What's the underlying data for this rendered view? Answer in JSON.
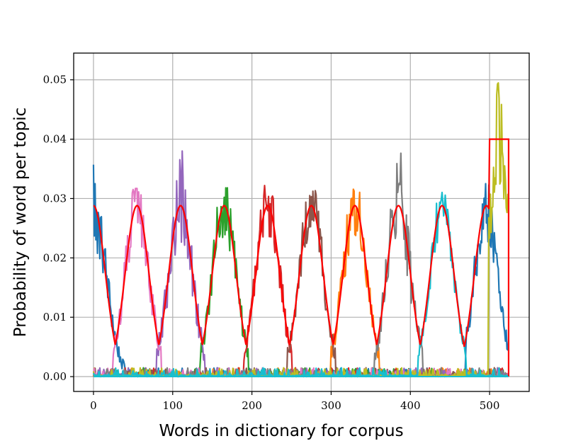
{
  "chart_data": {
    "type": "line",
    "title": "",
    "xlabel": "Words in dictionary for corpus",
    "ylabel": "Probability of word per topic",
    "xlim": [
      -25,
      550
    ],
    "ylim": [
      -0.0025,
      0.0545
    ],
    "xticks": [
      0,
      100,
      200,
      300,
      400,
      500
    ],
    "xtick_labels": [
      "0",
      "100",
      "200",
      "300",
      "400",
      "500"
    ],
    "yticks": [
      0.0,
      0.01,
      0.02,
      0.03,
      0.04,
      0.05
    ],
    "ytick_labels": [
      "0.00",
      "0.01",
      "0.02",
      "0.03",
      "0.04",
      "0.05"
    ],
    "grid": true,
    "x_range": [
      0,
      524
    ],
    "noise_floor": 0.0015,
    "reference_envelope": {
      "color": "#ff0000",
      "peak_height": 0.0288,
      "width": 15,
      "centers": [
        0,
        55,
        110,
        165,
        220,
        275,
        330,
        385,
        440,
        496
      ],
      "plateau": {
        "x": [
          500,
          524
        ],
        "y": 0.04
      }
    },
    "series": [
      {
        "color": "#1f77b4",
        "center": 3,
        "peak": 0.0255,
        "noise": 0.0045,
        "max": 0.0371,
        "x_range": [
          0,
          60
        ],
        "secondary": {
          "center": 496,
          "x_range": [
            470,
            524
          ],
          "peak": 0.028
        }
      },
      {
        "color": "#ff7f0e",
        "center": 330,
        "peak": 0.0288,
        "noise": 0.0045,
        "max": 0.0328,
        "x_range": [
          300,
          360
        ]
      },
      {
        "color": "#2ca02c",
        "center": 165,
        "peak": 0.0288,
        "noise": 0.0045,
        "max": 0.0318,
        "x_range": [
          135,
          195
        ]
      },
      {
        "color": "#d62728",
        "center": 220,
        "peak": 0.0288,
        "noise": 0.0045,
        "max": 0.0332,
        "x_range": [
          190,
          250
        ]
      },
      {
        "color": "#9467bd",
        "center": 110,
        "peak": 0.0288,
        "noise": 0.0055,
        "max": 0.0383,
        "x_range": [
          80,
          140
        ]
      },
      {
        "color": "#8c564b",
        "center": 275,
        "peak": 0.0288,
        "noise": 0.0045,
        "max": 0.0349,
        "x_range": [
          245,
          305
        ]
      },
      {
        "color": "#e377c2",
        "center": 55,
        "peak": 0.0288,
        "noise": 0.0045,
        "max": 0.0317,
        "x_range": [
          25,
          85
        ]
      },
      {
        "color": "#7f7f7f",
        "center": 385,
        "peak": 0.0288,
        "noise": 0.0055,
        "max": 0.038,
        "x_range": [
          355,
          415
        ]
      },
      {
        "color": "#bcbd22",
        "center": 512,
        "peak": 0.035,
        "noise": 0.0045,
        "max": 0.0521,
        "x_range": [
          499,
          524
        ]
      },
      {
        "color": "#17becf",
        "center": 440,
        "peak": 0.0285,
        "noise": 0.0035,
        "max": 0.0326,
        "x_range": [
          410,
          470
        ]
      }
    ]
  }
}
